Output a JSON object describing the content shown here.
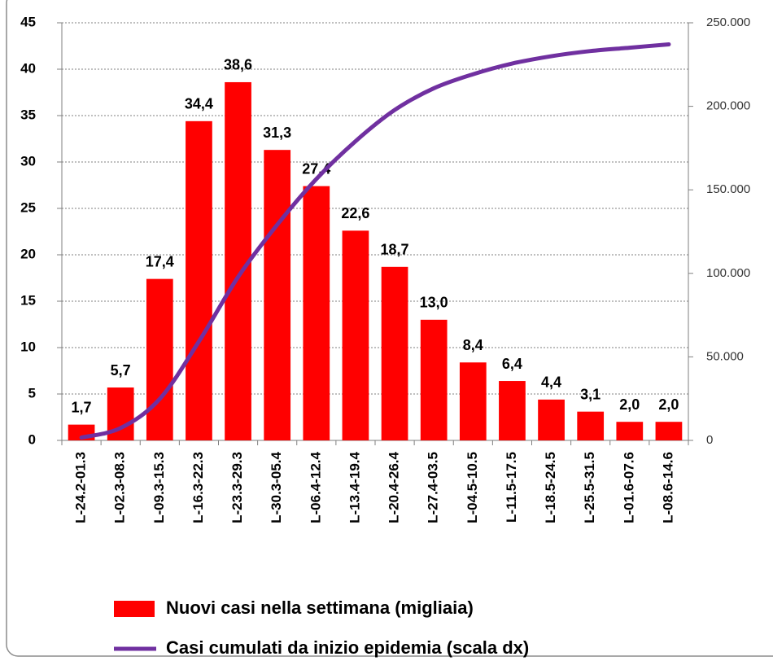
{
  "chart_data": {
    "type": "bar",
    "categories": [
      "L-24.2-01.3",
      "L-02.3-08.3",
      "L-09.3-15.3",
      "L-16.3-22.3",
      "L-23.3-29.3",
      "L-30.3-05.4",
      "L-06.4-12.4",
      "L-13.4-19.4",
      "L-20.4-26.4",
      "L-27.4-03.5",
      "L-04.5-10.5",
      "L-11.5-17.5",
      "L-18.5-24.5",
      "L-25.5-31.5",
      "L-01.6-07.6",
      "L-08.6-14.6"
    ],
    "series": [
      {
        "name": "Nuovi casi nella settimana (migliaia)",
        "color": "#ff0000",
        "type": "bar",
        "values": [
          1.7,
          5.7,
          17.4,
          34.4,
          38.6,
          31.3,
          27.4,
          22.6,
          18.7,
          13.0,
          8.4,
          6.4,
          4.4,
          3.1,
          2.0,
          2.0
        ],
        "value_labels": [
          "1,7",
          "5,7",
          "17,4",
          "34,4",
          "38,6",
          "31,3",
          "27,4",
          "22,6",
          "18,7",
          "13,0",
          "8,4",
          "6,4",
          "4,4",
          "3,1",
          "2,0",
          "2,0"
        ]
      },
      {
        "name": "Casi cumulati da inizio epidemia (scala dx)",
        "color": "#7030a0",
        "type": "line",
        "axis": "y2",
        "values": [
          1700,
          7400,
          24800,
          59200,
          97800,
          129100,
          156500,
          179100,
          197800,
          210800,
          219200,
          225600,
          230000,
          233100,
          235100,
          237100
        ]
      }
    ],
    "ylim": [
      0,
      45
    ],
    "yticks": [
      0,
      5,
      10,
      15,
      20,
      25,
      30,
      35,
      40,
      45
    ],
    "y2lim": [
      0,
      250000
    ],
    "y2ticks": [
      0,
      {
        "value": 50000,
        "label": "50.000"
      },
      {
        "value": 100000,
        "label": "100.000"
      },
      {
        "value": 150000,
        "label": "150.000"
      },
      {
        "value": 200000,
        "label": "200.000"
      },
      {
        "value": 250000,
        "label": "250.000"
      }
    ],
    "grid": true
  }
}
